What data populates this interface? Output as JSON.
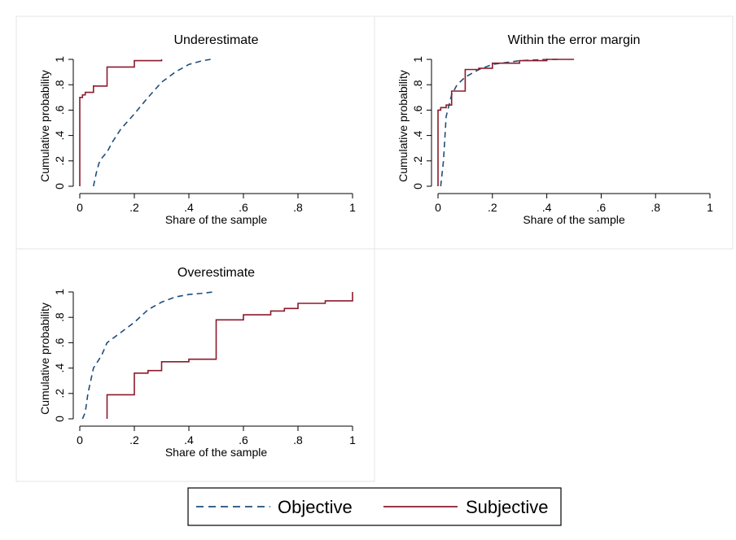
{
  "legend": {
    "placement": "bottom-center",
    "entries": [
      {
        "label": "Objective",
        "color": "#1f4e79",
        "style": "dashed"
      },
      {
        "label": "Subjective",
        "color": "#8b1a2b",
        "style": "solid"
      }
    ]
  },
  "chart_data": [
    {
      "type": "line",
      "title": "Underestimate",
      "xlabel": "Share of the sample",
      "ylabel": "Cumulative probability",
      "xlim": [
        0,
        1
      ],
      "ylim": [
        0,
        1
      ],
      "xticks": [
        "0",
        ".2",
        ".4",
        ".6",
        ".8",
        "1"
      ],
      "yticks": [
        "0",
        ".2",
        ".4",
        ".6",
        ".8",
        "1"
      ],
      "grid": false,
      "series": [
        {
          "name": "Objective",
          "step": false,
          "color": "#1f4e79",
          "dash": true,
          "x": [
            0.05,
            0.06,
            0.07,
            0.08,
            0.1,
            0.12,
            0.15,
            0.2,
            0.25,
            0.3,
            0.35,
            0.4,
            0.45,
            0.48
          ],
          "y": [
            0,
            0.1,
            0.18,
            0.22,
            0.27,
            0.35,
            0.45,
            0.57,
            0.7,
            0.82,
            0.9,
            0.96,
            0.99,
            1.0
          ]
        },
        {
          "name": "Subjective",
          "step": true,
          "color": "#8b1a2b",
          "dash": false,
          "x": [
            0,
            0.0,
            0.01,
            0.02,
            0.05,
            0.1,
            0.2,
            0.3
          ],
          "y": [
            0,
            0.7,
            0.72,
            0.74,
            0.79,
            0.94,
            0.99,
            1.0
          ]
        }
      ]
    },
    {
      "type": "line",
      "title": "Within the error margin",
      "xlabel": "Share of the sample",
      "ylabel": "Cumulative probability",
      "xlim": [
        0,
        1
      ],
      "ylim": [
        0,
        1
      ],
      "xticks": [
        "0",
        ".2",
        ".4",
        ".6",
        ".8",
        "1"
      ],
      "yticks": [
        "0",
        ".2",
        ".4",
        ".6",
        ".8",
        "1"
      ],
      "grid": false,
      "series": [
        {
          "name": "Objective",
          "step": false,
          "color": "#1f4e79",
          "dash": true,
          "x": [
            0.01,
            0.02,
            0.03,
            0.05,
            0.07,
            0.1,
            0.15,
            0.2,
            0.3,
            0.4,
            0.45
          ],
          "y": [
            0,
            0.2,
            0.55,
            0.72,
            0.8,
            0.86,
            0.92,
            0.96,
            0.99,
            1.0,
            1.0
          ]
        },
        {
          "name": "Subjective",
          "step": true,
          "color": "#8b1a2b",
          "dash": false,
          "x": [
            0,
            0.0,
            0.01,
            0.03,
            0.05,
            0.1,
            0.15,
            0.2,
            0.3,
            0.4,
            0.5
          ],
          "y": [
            0,
            0.6,
            0.62,
            0.64,
            0.75,
            0.92,
            0.93,
            0.97,
            0.99,
            1.0,
            1.0
          ]
        }
      ]
    },
    {
      "type": "line",
      "title": "Overestimate",
      "xlabel": "Share of the sample",
      "ylabel": "Cumulative probability",
      "xlim": [
        0,
        1
      ],
      "ylim": [
        0,
        1
      ],
      "xticks": [
        "0",
        ".2",
        ".4",
        ".6",
        ".8",
        "1"
      ],
      "yticks": [
        "0",
        ".2",
        ".4",
        ".6",
        ".8",
        "1"
      ],
      "grid": false,
      "series": [
        {
          "name": "Objective",
          "step": false,
          "color": "#1f4e79",
          "dash": true,
          "x": [
            0.01,
            0.02,
            0.03,
            0.05,
            0.08,
            0.1,
            0.15,
            0.2,
            0.25,
            0.3,
            0.35,
            0.4,
            0.45,
            0.49
          ],
          "y": [
            0,
            0.05,
            0.2,
            0.4,
            0.5,
            0.6,
            0.68,
            0.76,
            0.86,
            0.92,
            0.96,
            0.98,
            0.99,
            1.0
          ]
        },
        {
          "name": "Subjective",
          "step": true,
          "color": "#8b1a2b",
          "dash": false,
          "x": [
            0.1,
            0.1,
            0.2,
            0.25,
            0.3,
            0.4,
            0.5,
            0.6,
            0.7,
            0.75,
            0.8,
            0.9,
            1.0,
            1.0
          ],
          "y": [
            0,
            0.19,
            0.36,
            0.38,
            0.45,
            0.47,
            0.78,
            0.82,
            0.85,
            0.87,
            0.91,
            0.93,
            0.94,
            1.0
          ]
        }
      ]
    }
  ]
}
